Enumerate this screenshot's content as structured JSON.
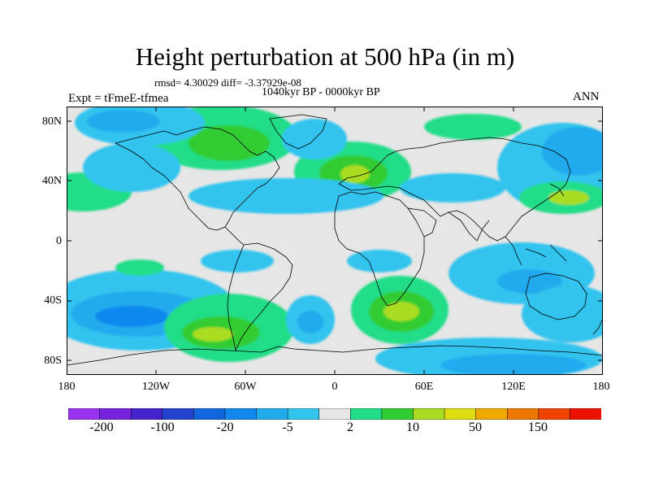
{
  "title": "Height perturbation at 500 hPa (in m)",
  "stats": "rmsd= 4.30029 diff= -3.37929e-08",
  "period": "1040kyr BP - 0000kyr BP",
  "experiment": "Expt = tFmeE-tfmea",
  "season": "ANN",
  "map": {
    "lat_labels": [
      "80N",
      "40N",
      "0",
      "40S",
      "80S"
    ],
    "lon_labels": [
      "180",
      "120W",
      "60W",
      "0",
      "60E",
      "120E",
      "180"
    ],
    "zero_band_color": "#e6e6e6",
    "coastline_color": "#000000"
  },
  "colorbar": {
    "colors": [
      "#9933ee",
      "#7722dd",
      "#4422cc",
      "#2244cc",
      "#1166dd",
      "#1188ee",
      "#22aaee",
      "#33c4ee",
      "#e6e6e6",
      "#22dd88",
      "#33cc33",
      "#aadd22",
      "#dddd11",
      "#eeaa00",
      "#ee7700",
      "#ee4400",
      "#ee1100"
    ],
    "labels": [
      "-200",
      "-100",
      "-20",
      "-5",
      "2",
      "10",
      "50",
      "150"
    ]
  }
}
